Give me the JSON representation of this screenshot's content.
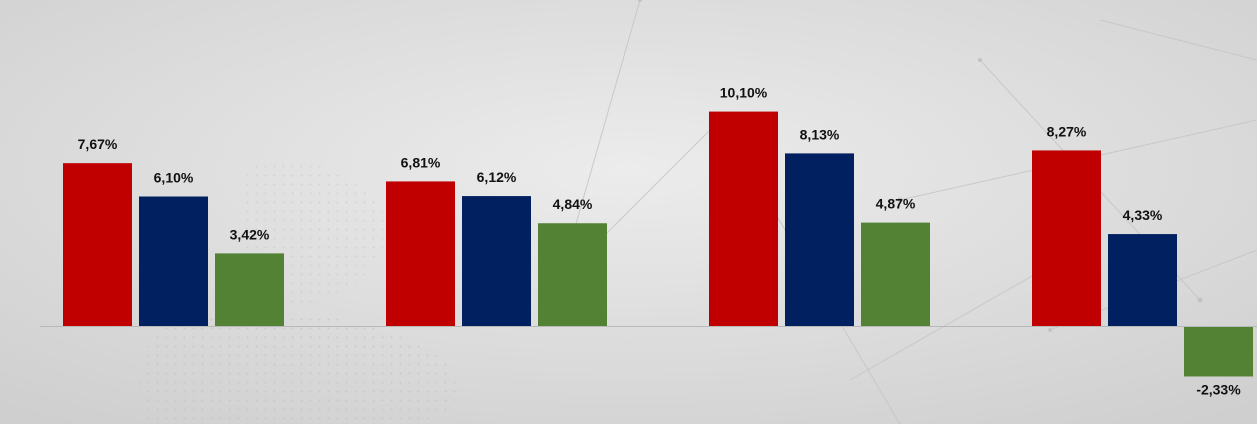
{
  "chart_data": {
    "type": "bar",
    "categories": [
      "",
      "",
      "",
      ""
    ],
    "series": [
      {
        "values": [
          7.67,
          6.81,
          10.1,
          8.27
        ],
        "labels": [
          "7,67%",
          "6,81%",
          "10,10%",
          "8,27%"
        ],
        "color": "#c00000"
      },
      {
        "values": [
          6.1,
          6.12,
          8.13,
          4.33
        ],
        "labels": [
          "6,10%",
          "6,12%",
          "8,13%",
          "4,33%"
        ],
        "color": "#002060"
      },
      {
        "values": [
          3.42,
          4.84,
          4.87,
          -2.33
        ],
        "labels": [
          "3,42%",
          "4,84%",
          "4,87%",
          "-2,33%"
        ],
        "color": "#548235"
      }
    ],
    "axis_line_color": "#b8b8b8",
    "grid": false,
    "legend": "none"
  }
}
